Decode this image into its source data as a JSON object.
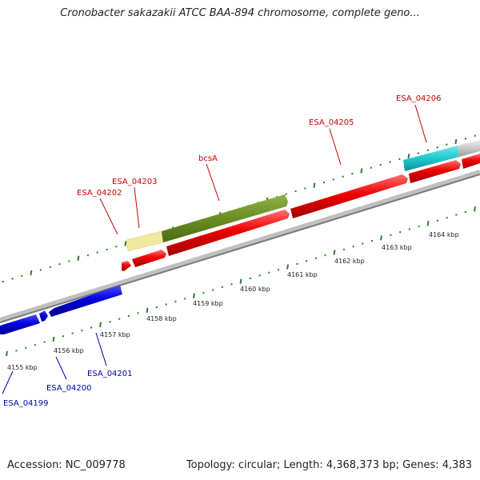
{
  "title": "Cronobacter sakazakii ATCC BAA-894 chromosome, complete geno...",
  "footer": {
    "accession": "Accession: NC_009778",
    "summary": "Topology: circular; Length: 4,368,373 bp; Genes: 4,383"
  },
  "colors": {
    "red": "#ee0000",
    "blue": "#0000dd",
    "olive": "#6b8e23",
    "cyan": "#20c8cc",
    "pale_yellow": "#f2e8a0",
    "gray": "#c8c8c8",
    "tick_green": "#2e7d32",
    "label_red": "#cc0000",
    "label_blue": "#0000aa"
  },
  "scale_labels": [
    "4155 kbp",
    "4156 kbp",
    "4157 kbp",
    "4158 kbp",
    "4159 kbp",
    "4160 kbp",
    "4161 kbp",
    "4162 kbp",
    "4163 kbp",
    "4164 kbp"
  ],
  "features": [
    {
      "id": "ESA_04199",
      "label": "ESA_04199",
      "color": "blue",
      "strand": "reverse"
    },
    {
      "id": "ESA_04200",
      "label": "ESA_04200",
      "color": "blue",
      "strand": "reverse"
    },
    {
      "id": "ESA_04201",
      "label": "ESA_04201",
      "color": "blue",
      "strand": "reverse"
    },
    {
      "id": "ESA_04202",
      "label": "ESA_04202",
      "color": "red",
      "strand": "forward"
    },
    {
      "id": "ESA_04203",
      "label": "ESA_04203",
      "color": "red",
      "strand": "forward"
    },
    {
      "id": "bcsA",
      "label": "bcsA",
      "color": "red",
      "strand": "forward"
    },
    {
      "id": "ESA_04205",
      "label": "ESA_04205",
      "color": "red",
      "strand": "forward"
    },
    {
      "id": "ESA_04206",
      "label": "ESA_04206",
      "color": "red",
      "strand": "forward"
    }
  ]
}
